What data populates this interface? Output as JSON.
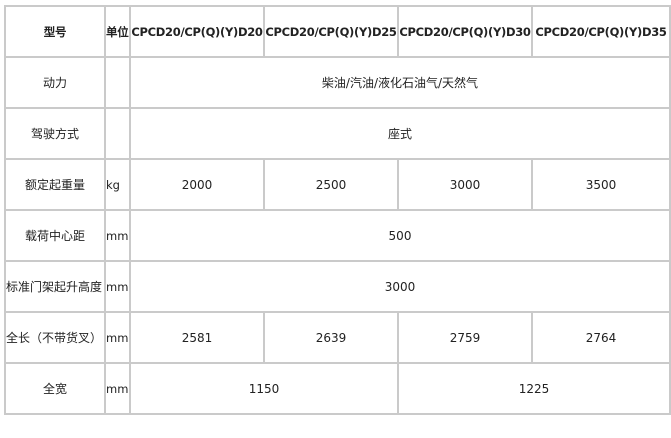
{
  "header": {
    "model_label": "型号",
    "unit_label": "单位",
    "models": [
      "CPCD20/CP(Q)(Y)D20",
      "CPCD20/CP(Q)(Y)D25",
      "CPCD20/CP(Q)(Y)D30",
      "CPCD20/CP(Q)(Y)D35"
    ]
  },
  "rows": {
    "power": {
      "label": "动力",
      "unit": "",
      "value": "柴油/汽油/液化石油气/天然气"
    },
    "driving": {
      "label": "驾驶方式",
      "unit": "",
      "value": "座式"
    },
    "capacity": {
      "label": "额定起重量",
      "unit": "kg",
      "values": [
        "2000",
        "2500",
        "3000",
        "3500"
      ]
    },
    "load_center": {
      "label": "载荷中心距",
      "unit": "mm",
      "value": "500"
    },
    "lift_height": {
      "label": "标准门架起升高度",
      "unit": "mm",
      "value": "3000"
    },
    "length": {
      "label": "全长（不带货叉）",
      "unit": "mm",
      "values": [
        "2581",
        "2639",
        "2759",
        "2764"
      ]
    },
    "width": {
      "label": "全宽",
      "unit": "mm",
      "values": [
        "1150",
        "1225"
      ]
    }
  }
}
